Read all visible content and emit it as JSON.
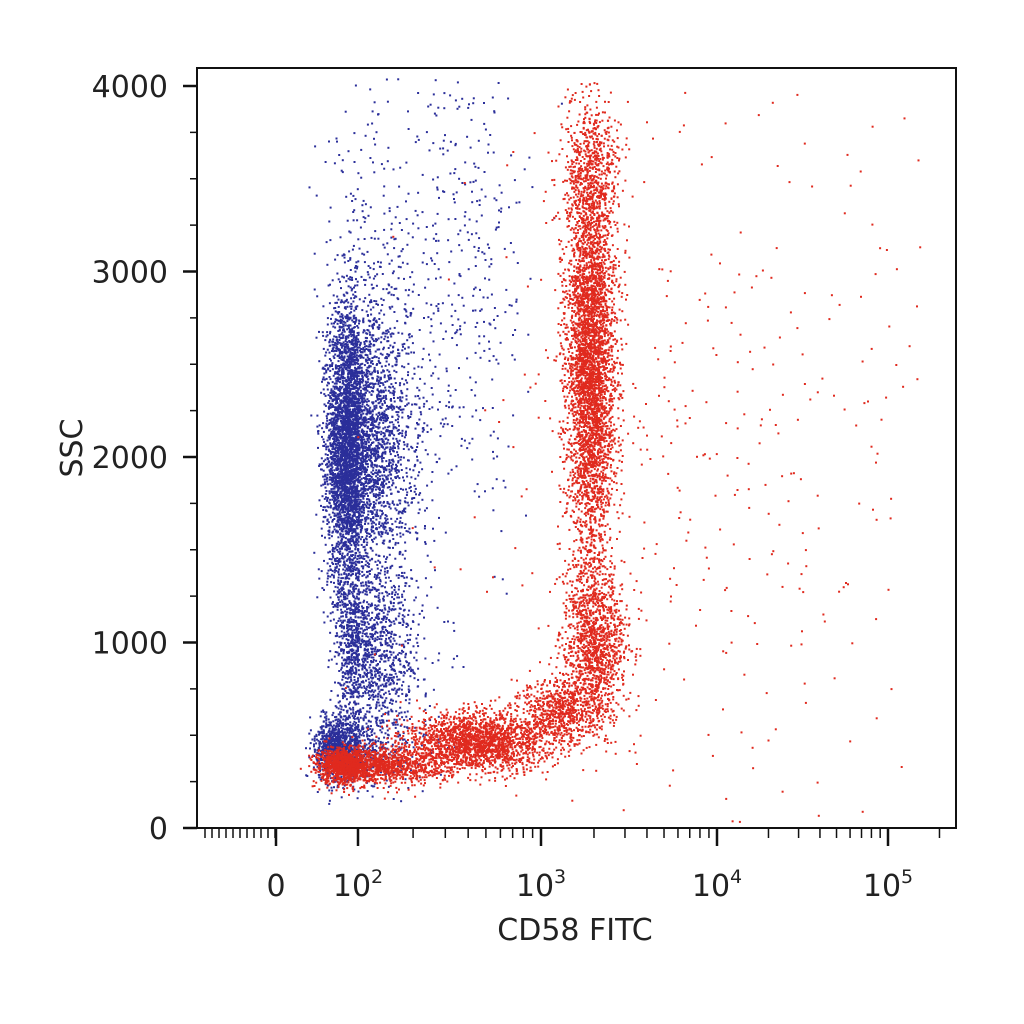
{
  "chart_data": {
    "type": "scatter",
    "xlabel": "CD58 FITC",
    "ylabel": "SSC",
    "x_scale": "biexponential",
    "x_ticks": [
      {
        "value": 0,
        "label": "0",
        "exp": ""
      },
      {
        "value": 100,
        "label": "10",
        "exp": "2"
      },
      {
        "value": 1000,
        "label": "10",
        "exp": "3"
      },
      {
        "value": 10000,
        "label": "10",
        "exp": "4"
      },
      {
        "value": 100000,
        "label": "10",
        "exp": "5"
      }
    ],
    "y_ticks": [
      {
        "value": 0,
        "label": "0"
      },
      {
        "value": 1000,
        "label": "1000"
      },
      {
        "value": 2000,
        "label": "2000"
      },
      {
        "value": 3000,
        "label": "3000"
      },
      {
        "value": 4000,
        "label": "4000"
      }
    ],
    "xlim": [
      -60,
      250000
    ],
    "ylim": [
      0,
      4100
    ],
    "grid": false,
    "legend": "none",
    "populations": [
      {
        "color": "#2b2f9a",
        "clusters": [
          {
            "x_median": 85,
            "x_spread_decades": 0.17,
            "y_mean": 2050,
            "y_sd": 380,
            "count": 5200
          },
          {
            "x_median": 110,
            "x_spread_decades": 0.15,
            "y_mean": 950,
            "y_sd": 230,
            "count": 1400
          },
          {
            "x_median": 65,
            "x_spread_decades": 0.22,
            "y_mean": 430,
            "y_sd": 90,
            "count": 1300
          },
          {
            "x_median": 140,
            "x_spread_decades": 0.3,
            "y_mean": 2800,
            "y_sd": 650,
            "count": 500
          },
          {
            "x_median": 420,
            "x_spread_decades": 0.16,
            "y_mean": 3000,
            "y_sd": 700,
            "count": 250
          }
        ]
      },
      {
        "color": "#e02a1e",
        "clusters": [
          {
            "x_median": 1900,
            "x_spread_decades": 0.07,
            "y_mean": 2500,
            "y_sd": 550,
            "count": 4200
          },
          {
            "x_median": 1900,
            "x_spread_decades": 0.09,
            "y_mean": 3550,
            "y_sd": 200,
            "count": 500
          },
          {
            "x_median": 2000,
            "x_spread_decades": 0.09,
            "y_mean": 1000,
            "y_sd": 200,
            "count": 1200
          },
          {
            "x_median": 450,
            "x_spread_decades": 0.2,
            "y_mean": 470,
            "y_sd": 80,
            "count": 2000
          },
          {
            "x_median": 90,
            "x_spread_decades": 0.25,
            "y_mean": 340,
            "y_sd": 50,
            "count": 2000
          },
          {
            "x_median": 1300,
            "x_spread_decades": 0.12,
            "y_mean": 640,
            "y_sd": 90,
            "count": 700
          },
          {
            "x_median": 9000,
            "x_spread_decades": 0.7,
            "y_mean": 2000,
            "y_sd": 1100,
            "count": 380
          }
        ]
      }
    ]
  }
}
